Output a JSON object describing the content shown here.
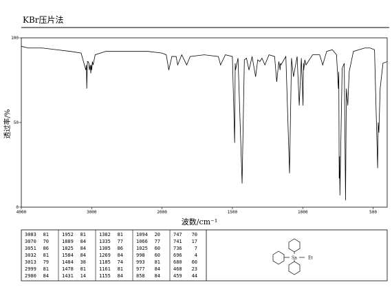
{
  "header": {
    "title": "KBr压片法"
  },
  "chart_data": {
    "type": "line",
    "xlabel": "波数/cm⁻¹",
    "ylabel": "透过率/%",
    "xlim": [
      4000,
      400
    ],
    "x_scale_change_at": 2000,
    "xticks": [
      4000,
      3000,
      2000,
      1500,
      1000,
      500
    ],
    "ylim": [
      0,
      100
    ],
    "yticks": [
      0,
      50,
      100
    ],
    "series": [
      {
        "color": "#000000",
        "x": [
          4000,
          3900,
          3700,
          3500,
          3300,
          3150,
          3083,
          3075,
          3070,
          3060,
          3051,
          3040,
          3032,
          3020,
          3013,
          3005,
          2999,
          2990,
          2980,
          2950,
          2800,
          2500,
          2200,
          2000,
          1970,
          1952,
          1930,
          1900,
          1889,
          1860,
          1825,
          1800,
          1700,
          1600,
          1584,
          1550,
          1500,
          1484,
          1480,
          1478,
          1460,
          1431,
          1415,
          1400,
          1382,
          1360,
          1335,
          1320,
          1305,
          1290,
          1269,
          1240,
          1200,
          1185,
          1170,
          1161,
          1158,
          1155,
          1120,
          1094,
          1080,
          1066,
          1040,
          1025,
          1010,
          998,
          995,
          993,
          985,
          977,
          930,
          880,
          858,
          830,
          790,
          760,
          747,
          744,
          741,
          738,
          736,
          720,
          705,
          696,
          690,
          680,
          670,
          640,
          560,
          520,
          490,
          468,
          464,
          459,
          450,
          430,
          400
        ],
        "values": [
          95,
          94,
          94,
          93,
          92,
          91,
          81,
          84,
          70,
          86,
          86,
          85,
          81,
          84,
          79,
          84,
          81,
          86,
          84,
          90,
          92,
          92,
          92,
          91,
          90,
          81,
          89,
          89,
          84,
          90,
          84,
          89,
          90,
          89,
          84,
          90,
          89,
          38,
          85,
          81,
          88,
          14,
          87,
          88,
          81,
          89,
          77,
          87,
          86,
          88,
          84,
          90,
          89,
          74,
          86,
          81,
          85,
          84,
          89,
          20,
          88,
          77,
          89,
          60,
          88,
          60,
          85,
          81,
          87,
          84,
          90,
          90,
          84,
          92,
          93,
          90,
          70,
          80,
          17,
          30,
          7,
          82,
          85,
          4,
          70,
          60,
          80,
          92,
          94,
          94,
          93,
          23,
          50,
          44,
          70,
          85,
          86
        ]
      }
    ]
  },
  "peak_table": {
    "columns": [
      [
        [
          3083,
          81
        ],
        [
          3070,
          70
        ],
        [
          3051,
          86
        ],
        [
          3032,
          81
        ],
        [
          3013,
          79
        ],
        [
          2999,
          81
        ],
        [
          2980,
          84
        ]
      ],
      [
        [
          1952,
          81
        ],
        [
          1889,
          84
        ],
        [
          1825,
          84
        ],
        [
          1584,
          84
        ],
        [
          1484,
          38
        ],
        [
          1478,
          81
        ],
        [
          1431,
          14
        ]
      ],
      [
        [
          1382,
          81
        ],
        [
          1335,
          77
        ],
        [
          1305,
          86
        ],
        [
          1269,
          84
        ],
        [
          1185,
          74
        ],
        [
          1161,
          81
        ],
        [
          1155,
          84
        ]
      ],
      [
        [
          1094,
          20
        ],
        [
          1066,
          77
        ],
        [
          1025,
          60
        ],
        [
          998,
          60
        ],
        [
          993,
          81
        ],
        [
          977,
          84
        ],
        [
          858,
          84
        ]
      ],
      [
        [
          747,
          70
        ],
        [
          741,
          17
        ],
        [
          736,
          7
        ],
        [
          696,
          4
        ],
        [
          680,
          60
        ],
        [
          468,
          23
        ],
        [
          459,
          44
        ]
      ]
    ]
  },
  "structure": {
    "atom": "Sn",
    "group": "Et"
  }
}
